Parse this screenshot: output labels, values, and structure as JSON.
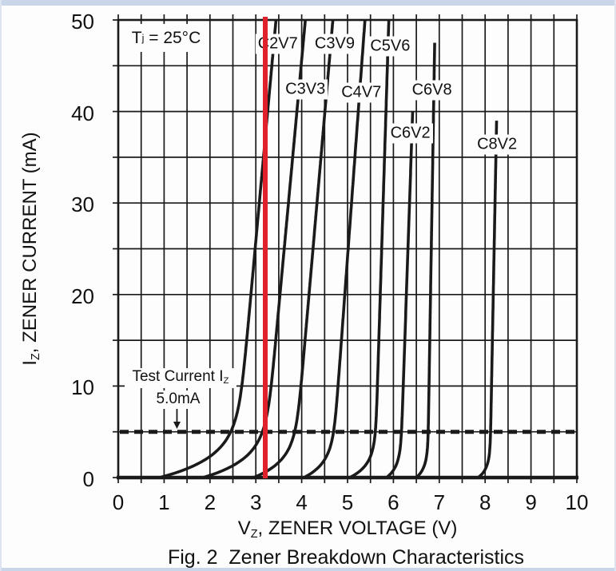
{
  "chart_data": {
    "type": "line",
    "title": "Fig. 2  Zener Breakdown Characteristics",
    "xlabel": {
      "pre": "V",
      "sub": "Z",
      "post": ", ZENER VOLTAGE (V)"
    },
    "ylabel": {
      "pre": "I",
      "sub": "Z",
      "post": ", ZENER CURRENT (mA)"
    },
    "xlim": [
      0,
      10
    ],
    "ylim": [
      0,
      50
    ],
    "xticks": [
      0,
      1,
      2,
      3,
      4,
      5,
      6,
      7,
      8,
      9,
      10
    ],
    "yticks": [
      0,
      10,
      20,
      30,
      40,
      50
    ],
    "grid": {
      "x_minor_step": 0.5,
      "y_minor_step": 5,
      "on": true
    },
    "condition_label": {
      "pre": "T",
      "sub": "j",
      "post": " = 25°C"
    },
    "test_current": {
      "label_pre": "Test Current I",
      "label_sub": "Z",
      "value_label": "5.0mA",
      "i_ma": 5,
      "arrow_v": 1.28
    },
    "red_marker_v": 3.2,
    "colors": {
      "curve": "#1a1a1a",
      "red_line": "#e0202a"
    },
    "curves": [
      {
        "label": "C2V7",
        "v_toe": 0.9,
        "v_at_5ma": 2.62,
        "v_top": 3.44,
        "i_top": 50,
        "knee": 2.2,
        "label_v": 3.48,
        "label_i": 47.4
      },
      {
        "label": "C3V3",
        "v_toe": 1.85,
        "v_at_5ma": 3.25,
        "v_top": 4.08,
        "i_top": 50,
        "knee": 2.0,
        "label_v": 4.08,
        "label_i": 42.4
      },
      {
        "label": "C3V9",
        "v_toe": 2.95,
        "v_at_5ma": 3.9,
        "v_top": 4.68,
        "i_top": 50,
        "knee": 1.8,
        "label_v": 4.72,
        "label_i": 47.4
      },
      {
        "label": "C4V7",
        "v_toe": 4.05,
        "v_at_5ma": 4.72,
        "v_top": 5.38,
        "i_top": 50,
        "knee": 1.6,
        "label_v": 5.3,
        "label_i": 42.1
      },
      {
        "label": "C5V6",
        "v_toe": 5.05,
        "v_at_5ma": 5.62,
        "v_top": 5.9,
        "i_top": 50,
        "knee": 1.4,
        "label_v": 5.93,
        "label_i": 47.1
      },
      {
        "label": "C6V2",
        "v_toe": 5.85,
        "v_at_5ma": 6.18,
        "v_top": 6.42,
        "i_top": 40,
        "knee": 1.2,
        "label_v": 6.37,
        "label_i": 37.6
      },
      {
        "label": "C6V8",
        "v_toe": 6.5,
        "v_at_5ma": 6.76,
        "v_top": 6.9,
        "i_top": 47.5,
        "knee": 1.1,
        "label_v": 6.84,
        "label_i": 42.3
      },
      {
        "label": "C8V2",
        "v_toe": 7.85,
        "v_at_5ma": 8.12,
        "v_top": 8.25,
        "i_top": 39,
        "knee": 1.0,
        "label_v": 8.26,
        "label_i": 36.4
      }
    ]
  }
}
